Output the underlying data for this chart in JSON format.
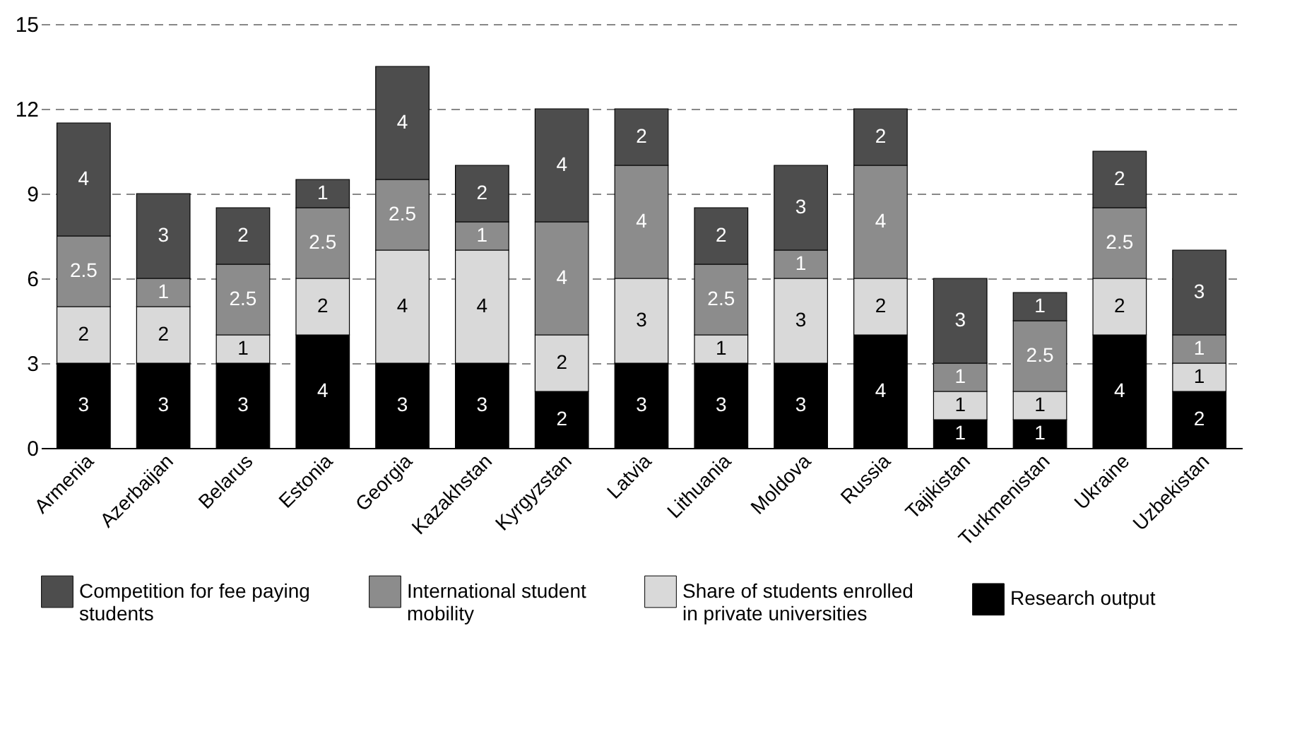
{
  "chart_data": {
    "type": "bar",
    "stacked": true,
    "data_labels": true,
    "grid": "y",
    "legend": "bottom",
    "categories": [
      "Armenia",
      "Azerbaijan",
      "Belarus",
      "Estonia",
      "Georgia",
      "Kazakhstan",
      "Kyrgyzstan",
      "Latvia",
      "Lithuania",
      "Moldova",
      "Russia",
      "Tajikistan",
      "Turkmenistan",
      "Ukraine",
      "Uzbekistan"
    ],
    "ylim": [
      0,
      15
    ],
    "yticks": [
      0,
      3,
      6,
      9,
      12,
      15
    ],
    "series": [
      {
        "name": "Research output",
        "color": "#000000",
        "values": [
          3,
          3,
          3,
          4,
          3,
          3,
          2,
          3,
          3,
          3,
          4,
          1,
          1,
          4,
          2
        ]
      },
      {
        "name": "Share of students enrolled in private universities",
        "color": "#d9d9d9",
        "values": [
          2,
          2,
          1,
          2,
          4,
          4,
          2,
          3,
          1,
          3,
          2,
          1,
          1,
          2,
          1
        ]
      },
      {
        "name": "International student mobility",
        "color": "#8c8c8c",
        "values": [
          2.5,
          1,
          2.5,
          2.5,
          2.5,
          1,
          4,
          4,
          2.5,
          1,
          4,
          1,
          2.5,
          2.5,
          1
        ]
      },
      {
        "name": "Competition for fee paying students",
        "color": "#4d4d4d",
        "values": [
          4,
          3,
          2,
          1,
          4,
          2,
          4,
          2,
          2,
          3,
          2,
          3,
          1,
          2,
          3
        ]
      }
    ]
  }
}
